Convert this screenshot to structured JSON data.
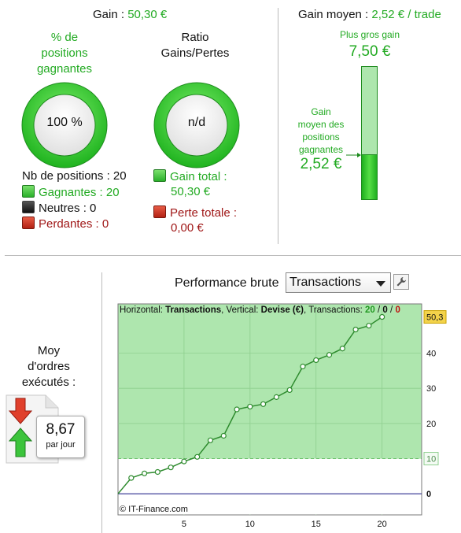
{
  "gain": {
    "label": "Gain :",
    "value": "50,30 €"
  },
  "win_pct": {
    "label": [
      "% de",
      "positions",
      "gagnantes"
    ],
    "value": "100 %"
  },
  "ratio": {
    "label": [
      "Ratio",
      "Gains/Pertes"
    ],
    "value": "n/d"
  },
  "positions": {
    "count_label": "Nb de positions : 20",
    "winners": "Gagnantes : 20",
    "neutral": "Neutres : 0",
    "losers": "Perdantes : 0"
  },
  "totals": {
    "gain_label": "Gain total :",
    "gain_value": "50,30 €",
    "loss_label": "Perte totale :",
    "loss_value": "0,00 €"
  },
  "avg_gain": {
    "label": "Gain moyen :",
    "value": "2,52 € / trade",
    "biggest_label": "Plus gros gain",
    "biggest_value": "7,50 €",
    "avg_win_label": [
      "Gain",
      "moyen des",
      "positions",
      "gagnantes"
    ],
    "avg_win_value": "2,52 €",
    "bar_fill_fraction": 0.336
  },
  "orders": {
    "label": [
      "Moy",
      "d'ordres",
      "exécutés :"
    ],
    "value": "8,67",
    "unit": "par jour"
  },
  "performance": {
    "title": "Performance brute",
    "select_value": "Transactions",
    "tool": "wrench-icon"
  },
  "chart_data": {
    "type": "line",
    "info": {
      "h_label": "Horizontal:",
      "h_value": "Transactions",
      "v_label": "Vertical:",
      "v_value": "Devise (€)",
      "t_label": "Transactions:",
      "t_win": "20",
      "t_neutral": "0",
      "t_loss": "0",
      "sep": "/"
    },
    "x": [
      0,
      1,
      2,
      3,
      4,
      5,
      6,
      7,
      8,
      9,
      10,
      11,
      12,
      13,
      14,
      15,
      16,
      17,
      18,
      19,
      20
    ],
    "y": [
      0,
      4.5,
      5.8,
      6.2,
      7.5,
      9.2,
      10.5,
      15.2,
      16.5,
      24,
      24.8,
      25.5,
      27.5,
      29.5,
      36.2,
      38,
      39.5,
      41.3,
      46.7,
      47.8,
      50.3
    ],
    "xlim": [
      0,
      23
    ],
    "ylim": [
      -6,
      54
    ],
    "xticks": [
      "5",
      "10",
      "15",
      "20"
    ],
    "xtick_values": [
      5,
      10,
      15,
      20
    ],
    "yticks": [
      "0",
      "10",
      "20",
      "30",
      "40"
    ],
    "ytick_values": [
      0,
      10,
      20,
      30,
      40
    ],
    "last_value_label": "50,3",
    "threshold_label": "10",
    "threshold_value": 10,
    "copyright": "© IT-Finance.com",
    "colors": {
      "area": "#aee6ae",
      "line": "#2e8b2e",
      "zero": "#2b2b8f",
      "highlight": "#f3d34a"
    }
  }
}
